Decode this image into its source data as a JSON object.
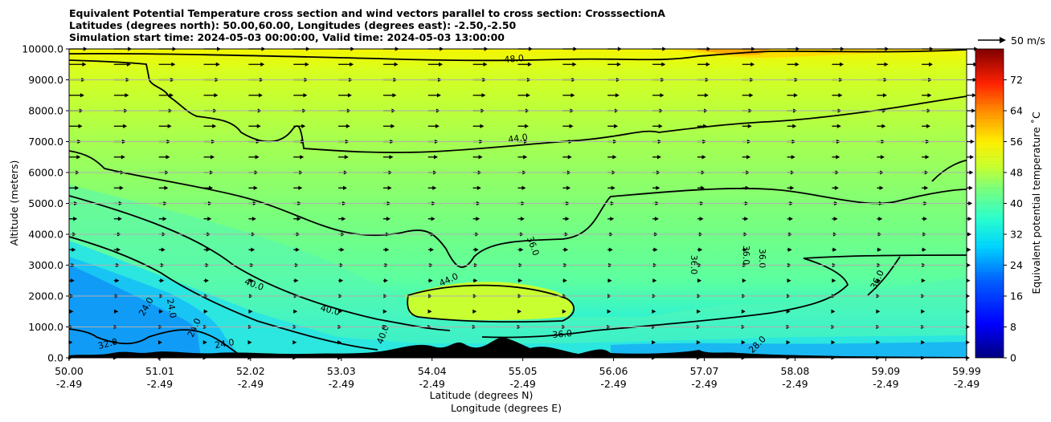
{
  "title": {
    "line1": "Equivalent Potential Temperature cross section and wind vectors parallel to cross section: CrosssectionA",
    "line2": "Latitudes (degrees north): 50.00,60.00, Longitudes (degrees east): -2.50,-2.50",
    "line3": "Simulation start time: 2024-05-03 00:00:00, Valid time: 2024-05-03 13:00:00"
  },
  "chart_data": {
    "type": "heatmap",
    "xlabel": "Latitude (degrees N)",
    "xlabel2": "Longitude (degrees E)",
    "ylabel": "Altitude (meters)",
    "ylim": [
      0,
      10000
    ],
    "xlim": [
      50.0,
      59.99
    ],
    "y_ticks": [
      "0.0",
      "1000.0",
      "2000.0",
      "3000.0",
      "4000.0",
      "5000.0",
      "6000.0",
      "7000.0",
      "8000.0",
      "9000.0",
      "10000.0"
    ],
    "x_ticks": [
      {
        "lat": "50.00",
        "lon": "-2.49"
      },
      {
        "lat": "51.01",
        "lon": "-2.49"
      },
      {
        "lat": "52.02",
        "lon": "-2.49"
      },
      {
        "lat": "53.03",
        "lon": "-2.49"
      },
      {
        "lat": "54.04",
        "lon": "-2.49"
      },
      {
        "lat": "55.05",
        "lon": "-2.49"
      },
      {
        "lat": "56.06",
        "lon": "-2.49"
      },
      {
        "lat": "57.07",
        "lon": "-2.49"
      },
      {
        "lat": "58.08",
        "lon": "-2.49"
      },
      {
        "lat": "59.09",
        "lon": "-2.49"
      },
      {
        "lat": "59.99",
        "lon": "-2.49"
      }
    ],
    "grid": "horizontal",
    "colorbar": {
      "label": "Equivalent potential temperature ˚C",
      "range": [
        0,
        80
      ],
      "ticks": [
        "0",
        "8",
        "16",
        "24",
        "32",
        "40",
        "48",
        "56",
        "64",
        "72"
      ],
      "colormap": "jet"
    },
    "quiver_key": {
      "label": "50 m/s"
    },
    "contour_levels": [
      24.0,
      28.0,
      32.0,
      36.0,
      40.0,
      44.0,
      48.0,
      52.0
    ],
    "contours": [
      {
        "level": "48.0",
        "y_approx_m": 9500
      },
      {
        "level": "44.0",
        "y_approx_m": 7000
      },
      {
        "level": "40.0",
        "y_approx_m": 2500
      },
      {
        "level": "36.0",
        "y_approx_m": 2000
      },
      {
        "level": "32.0",
        "y_approx_m": 1200
      },
      {
        "level": "24.0",
        "y_approx_m": 500
      }
    ],
    "contour_label_texts": [
      "48.0",
      "44.0",
      "44.0",
      "40.0",
      "40.0",
      "40.0",
      "36.0",
      "36.0",
      "36.0",
      "36.0",
      "32.0",
      "24.0",
      "24.0",
      "24.0",
      "24.0",
      "28.0",
      "36.0",
      "36.0"
    ],
    "wind": {
      "direction": "parallel to cross section, northward (rightward)",
      "upper_max_ms": 35,
      "lower_ms": 5
    }
  }
}
